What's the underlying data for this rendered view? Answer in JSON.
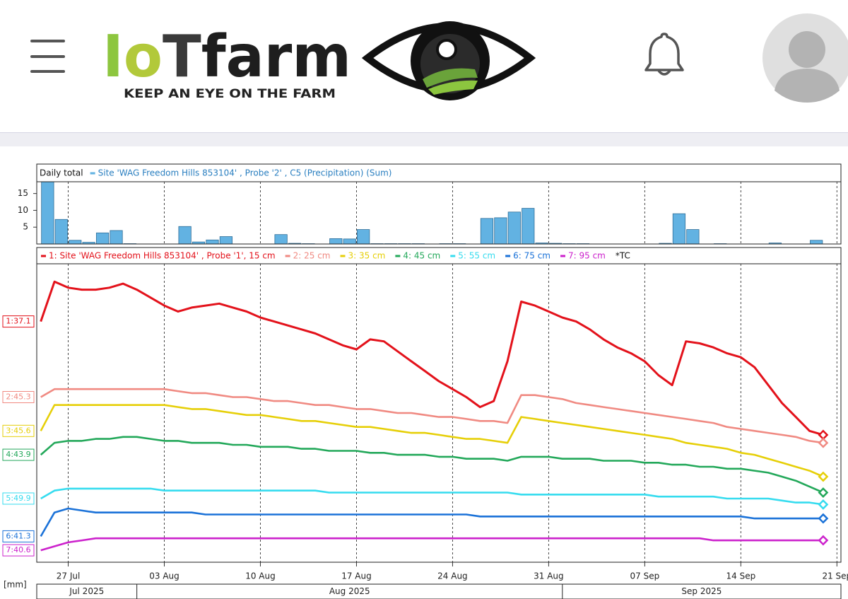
{
  "header": {
    "logo": {
      "parts": [
        "I",
        "o",
        "T",
        "farm"
      ],
      "tagline": "KEEP AN EYE ON THE FARM"
    }
  },
  "chart_data": [
    {
      "type": "bar",
      "title": "Daily total",
      "x": [
        "2025-07-25",
        "2025-07-26",
        "2025-07-27",
        "2025-07-28",
        "2025-07-29",
        "2025-07-30",
        "2025-07-31",
        "2025-08-01",
        "2025-08-02",
        "2025-08-03",
        "2025-08-04",
        "2025-08-05",
        "2025-08-06",
        "2025-08-07",
        "2025-08-08",
        "2025-08-09",
        "2025-08-10",
        "2025-08-11",
        "2025-08-12",
        "2025-08-13",
        "2025-08-14",
        "2025-08-15",
        "2025-08-16",
        "2025-08-17",
        "2025-08-18",
        "2025-08-19",
        "2025-08-20",
        "2025-08-21",
        "2025-08-22",
        "2025-08-23",
        "2025-08-24",
        "2025-08-25",
        "2025-08-26",
        "2025-08-27",
        "2025-08-28",
        "2025-08-29",
        "2025-08-30",
        "2025-08-31",
        "2025-09-01",
        "2025-09-02",
        "2025-09-03",
        "2025-09-04",
        "2025-09-05",
        "2025-09-06",
        "2025-09-07",
        "2025-09-08",
        "2025-09-09",
        "2025-09-10",
        "2025-09-11",
        "2025-09-12",
        "2025-09-13",
        "2025-09-14",
        "2025-09-15",
        "2025-09-16",
        "2025-09-17",
        "2025-09-18",
        "2025-09-19",
        "2025-09-20"
      ],
      "xlim": [
        "2025-07-24T17:00",
        "2025-09-21T07:00"
      ],
      "ylim": [
        0,
        18.5
      ],
      "yticks": [
        5,
        10,
        15
      ],
      "series": [
        {
          "name": "Site 'WAG Freedom Hills 853104' , Probe '2' , C5 (Precipitation) (Sum)",
          "color": "#62b2e2",
          "values": [
            18.5,
            7.3,
            1.1,
            0.5,
            3.3,
            4.0,
            0.1,
            0,
            0,
            0,
            5.2,
            0.6,
            1.2,
            2.2,
            0,
            0,
            0,
            2.8,
            0.2,
            0.1,
            0,
            1.6,
            1.5,
            4.3,
            0.1,
            0.1,
            0.1,
            0.1,
            0,
            0.1,
            0.1,
            0,
            7.6,
            7.8,
            9.5,
            10.6,
            0.3,
            0.2,
            0.1,
            0.1,
            0,
            0,
            0,
            0,
            0,
            0.2,
            9.0,
            4.3,
            0,
            0.1,
            0,
            0,
            0,
            0.3,
            0,
            0,
            1.1,
            0
          ]
        }
      ]
    },
    {
      "type": "line",
      "ylabel": "[mm]",
      "legend_note": "*TC",
      "xgrid": true,
      "x": [
        "2025-07-25",
        "2025-07-26",
        "2025-07-27",
        "2025-07-28",
        "2025-07-29",
        "2025-07-30",
        "2025-07-31",
        "2025-08-01",
        "2025-08-02",
        "2025-08-03",
        "2025-08-04",
        "2025-08-05",
        "2025-08-06",
        "2025-08-07",
        "2025-08-08",
        "2025-08-09",
        "2025-08-10",
        "2025-08-11",
        "2025-08-12",
        "2025-08-13",
        "2025-08-14",
        "2025-08-15",
        "2025-08-16",
        "2025-08-17",
        "2025-08-18",
        "2025-08-19",
        "2025-08-20",
        "2025-08-21",
        "2025-08-22",
        "2025-08-23",
        "2025-08-24",
        "2025-08-25",
        "2025-08-26",
        "2025-08-27",
        "2025-08-28",
        "2025-08-29",
        "2025-08-30",
        "2025-08-31",
        "2025-09-01",
        "2025-09-02",
        "2025-09-03",
        "2025-09-04",
        "2025-09-05",
        "2025-09-06",
        "2025-09-07",
        "2025-09-08",
        "2025-09-09",
        "2025-09-10",
        "2025-09-11",
        "2025-09-12",
        "2025-09-13",
        "2025-09-14",
        "2025-09-15",
        "2025-09-16",
        "2025-09-17",
        "2025-09-18",
        "2025-09-19",
        "2025-09-20"
      ],
      "xlim": [
        "2025-07-24T17:00",
        "2025-09-21T07:00"
      ],
      "xticks": [
        {
          "value": "2025-07-27",
          "label": "27 Jul"
        },
        {
          "value": "2025-08-03",
          "label": "03 Aug"
        },
        {
          "value": "2025-08-10",
          "label": "10 Aug"
        },
        {
          "value": "2025-08-17",
          "label": "17 Aug"
        },
        {
          "value": "2025-08-24",
          "label": "24 Aug"
        },
        {
          "value": "2025-08-31",
          "label": "31 Aug"
        },
        {
          "value": "2025-09-07",
          "label": "07 Sep"
        },
        {
          "value": "2025-09-14",
          "label": "14 Sep"
        },
        {
          "value": "2025-09-21",
          "label": "21 Sep"
        }
      ],
      "months": [
        {
          "value": "2025-07",
          "label": "Jul 2025"
        },
        {
          "value": "2025-08",
          "label": "Aug 2025"
        },
        {
          "value": "2025-09",
          "label": "Sep 2025"
        }
      ],
      "series": [
        {
          "name": "1: Site 'WAG Freedom Hills 853104' , Probe '1', 15 cm",
          "color": "#e3121b",
          "start_label": "1:37.1",
          "ylim": [
            25,
            40
          ],
          "values": [
            37.1,
            39.1,
            38.8,
            38.7,
            38.7,
            38.8,
            39.0,
            38.7,
            38.3,
            37.9,
            37.6,
            37.8,
            37.9,
            38.0,
            37.8,
            37.6,
            37.3,
            37.1,
            36.9,
            36.7,
            36.5,
            36.2,
            35.9,
            35.7,
            36.2,
            36.1,
            35.6,
            35.1,
            34.6,
            34.1,
            33.7,
            33.3,
            32.8,
            33.1,
            35.1,
            38.1,
            37.9,
            37.6,
            37.3,
            37.1,
            36.7,
            36.2,
            35.8,
            35.5,
            35.1,
            34.4,
            33.9,
            36.1,
            36.0,
            35.8,
            35.5,
            35.3,
            34.8,
            33.9,
            33.0,
            32.3,
            31.6,
            31.4
          ]
        },
        {
          "name": "2: 25 cm",
          "color": "#f08a82",
          "start_label": "2:45.3",
          "ylim": [
            37,
            52
          ],
          "values": [
            45.3,
            45.7,
            45.7,
            45.7,
            45.7,
            45.7,
            45.7,
            45.7,
            45.7,
            45.7,
            45.6,
            45.5,
            45.5,
            45.4,
            45.3,
            45.3,
            45.2,
            45.1,
            45.1,
            45.0,
            44.9,
            44.9,
            44.8,
            44.7,
            44.7,
            44.6,
            44.5,
            44.5,
            44.4,
            44.3,
            44.3,
            44.2,
            44.1,
            44.1,
            44.0,
            45.4,
            45.4,
            45.3,
            45.2,
            45.0,
            44.9,
            44.8,
            44.7,
            44.6,
            44.5,
            44.4,
            44.3,
            44.2,
            44.1,
            44.0,
            43.8,
            43.7,
            43.6,
            43.5,
            43.4,
            43.3,
            43.1,
            43.0
          ]
        },
        {
          "name": "3: 35 cm",
          "color": "#e6cf08",
          "start_label": "3:45.6",
          "ylim": [
            39,
            54
          ],
          "values": [
            45.6,
            46.9,
            46.9,
            46.9,
            46.9,
            46.9,
            46.9,
            46.9,
            46.9,
            46.9,
            46.8,
            46.7,
            46.7,
            46.6,
            46.5,
            46.4,
            46.4,
            46.3,
            46.2,
            46.1,
            46.1,
            46.0,
            45.9,
            45.8,
            45.8,
            45.7,
            45.6,
            45.5,
            45.5,
            45.4,
            45.3,
            45.2,
            45.2,
            45.1,
            45.0,
            46.3,
            46.2,
            46.1,
            46.0,
            45.9,
            45.8,
            45.7,
            45.6,
            45.5,
            45.4,
            45.3,
            45.2,
            45.0,
            44.9,
            44.8,
            44.7,
            44.5,
            44.4,
            44.2,
            44.0,
            43.8,
            43.6,
            43.3
          ]
        },
        {
          "name": "4: 45 cm",
          "color": "#23a85a",
          "start_label": "4:43.9",
          "ylim": [
            38.5,
            53.5
          ],
          "values": [
            43.9,
            44.5,
            44.6,
            44.6,
            44.7,
            44.7,
            44.8,
            44.8,
            44.7,
            44.6,
            44.6,
            44.5,
            44.5,
            44.5,
            44.4,
            44.4,
            44.3,
            44.3,
            44.3,
            44.2,
            44.2,
            44.1,
            44.1,
            44.1,
            44.0,
            44.0,
            43.9,
            43.9,
            43.9,
            43.8,
            43.8,
            43.7,
            43.7,
            43.7,
            43.6,
            43.8,
            43.8,
            43.8,
            43.7,
            43.7,
            43.7,
            43.6,
            43.6,
            43.6,
            43.5,
            43.5,
            43.4,
            43.4,
            43.3,
            43.3,
            43.2,
            43.2,
            43.1,
            43.0,
            42.8,
            42.6,
            42.3,
            42.0
          ]
        },
        {
          "name": "5: 55 cm",
          "color": "#36dcef",
          "start_label": "5:49.9",
          "ylim": [
            46.7,
            61.7
          ],
          "values": [
            49.9,
            50.3,
            50.4,
            50.4,
            50.4,
            50.4,
            50.4,
            50.4,
            50.4,
            50.3,
            50.3,
            50.3,
            50.3,
            50.3,
            50.3,
            50.3,
            50.3,
            50.3,
            50.3,
            50.3,
            50.3,
            50.2,
            50.2,
            50.2,
            50.2,
            50.2,
            50.2,
            50.2,
            50.2,
            50.2,
            50.2,
            50.2,
            50.2,
            50.2,
            50.2,
            50.1,
            50.1,
            50.1,
            50.1,
            50.1,
            50.1,
            50.1,
            50.1,
            50.1,
            50.1,
            50.0,
            50.0,
            50.0,
            50.0,
            50.0,
            49.9,
            49.9,
            49.9,
            49.9,
            49.8,
            49.7,
            49.7,
            49.6
          ]
        },
        {
          "name": "6: 75 cm",
          "color": "#1b72d8",
          "start_label": "6:41.3",
          "ylim": [
            40,
            55
          ],
          "values": [
            41.3,
            42.5,
            42.7,
            42.6,
            42.5,
            42.5,
            42.5,
            42.5,
            42.5,
            42.5,
            42.5,
            42.5,
            42.4,
            42.4,
            42.4,
            42.4,
            42.4,
            42.4,
            42.4,
            42.4,
            42.4,
            42.4,
            42.4,
            42.4,
            42.4,
            42.4,
            42.4,
            42.4,
            42.4,
            42.4,
            42.4,
            42.4,
            42.3,
            42.3,
            42.3,
            42.3,
            42.3,
            42.3,
            42.3,
            42.3,
            42.3,
            42.3,
            42.3,
            42.3,
            42.3,
            42.3,
            42.3,
            42.3,
            42.3,
            42.3,
            42.3,
            42.3,
            42.2,
            42.2,
            42.2,
            42.2,
            42.2,
            42.2
          ]
        },
        {
          "name": "7: 95 cm",
          "color": "#cc22cc",
          "start_label": "7:40.6",
          "ylim": [
            40,
            55
          ],
          "values": [
            40.6,
            40.8,
            41.0,
            41.1,
            41.2,
            41.2,
            41.2,
            41.2,
            41.2,
            41.2,
            41.2,
            41.2,
            41.2,
            41.2,
            41.2,
            41.2,
            41.2,
            41.2,
            41.2,
            41.2,
            41.2,
            41.2,
            41.2,
            41.2,
            41.2,
            41.2,
            41.2,
            41.2,
            41.2,
            41.2,
            41.2,
            41.2,
            41.2,
            41.2,
            41.2,
            41.2,
            41.2,
            41.2,
            41.2,
            41.2,
            41.2,
            41.2,
            41.2,
            41.2,
            41.2,
            41.2,
            41.2,
            41.2,
            41.2,
            41.1,
            41.1,
            41.1,
            41.1,
            41.1,
            41.1,
            41.1,
            41.1,
            41.1
          ]
        }
      ]
    }
  ]
}
